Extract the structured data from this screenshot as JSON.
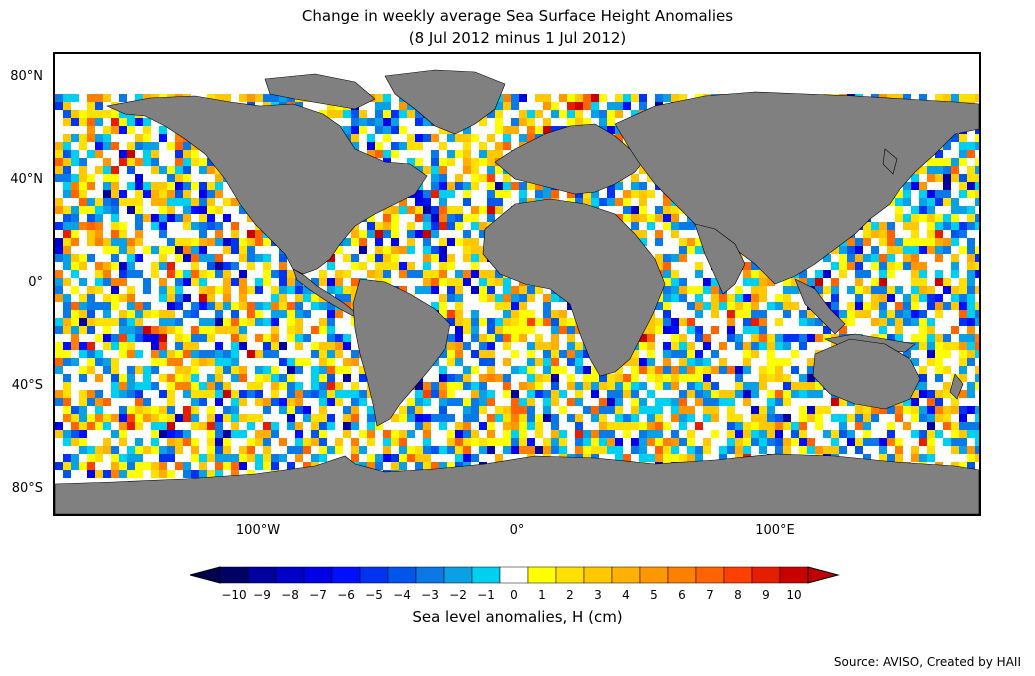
{
  "title": "Change in weekly average Sea Surface Height Anomalies",
  "subtitle": "(8 Jul 2012 minus 1 Jul 2012)",
  "lat_labels": [
    "80°N",
    "40°N",
    "0°",
    "40°S",
    "80°S"
  ],
  "lat_values": [
    80,
    40,
    0,
    -40,
    -80
  ],
  "lon_labels": [
    "100°W",
    "0°",
    "100°E"
  ],
  "lon_values": [
    -100,
    0,
    100
  ],
  "colorbar": {
    "label": "Sea level anomalies, H (cm)",
    "ticks": [
      "−10",
      "−9",
      "−8",
      "−7",
      "−6",
      "−5",
      "−4",
      "−3",
      "−2",
      "−1",
      "0",
      "1",
      "2",
      "3",
      "4",
      "5",
      "6",
      "7",
      "8",
      "9",
      "10"
    ],
    "colors": [
      "#000066",
      "#00009e",
      "#0000c8",
      "#0000e6",
      "#0010ff",
      "#0033f0",
      "#0055ea",
      "#0a78e6",
      "#0aa0e6",
      "#00d0f0",
      "#ffffff",
      "#ffff00",
      "#ffe000",
      "#ffc800",
      "#ffb000",
      "#ff9800",
      "#ff8000",
      "#ff6400",
      "#ff4000",
      "#e61e00",
      "#c80000"
    ],
    "under_color": "#000050",
    "over_color": "#c00000"
  },
  "map": {
    "extent": {
      "lon": [
        -180,
        180
      ],
      "lat": [
        -90,
        90
      ]
    },
    "land_color": "#808080",
    "ocean_missing_color": "#ffffff"
  },
  "source": "Source: AVISO, Created by HAII"
}
